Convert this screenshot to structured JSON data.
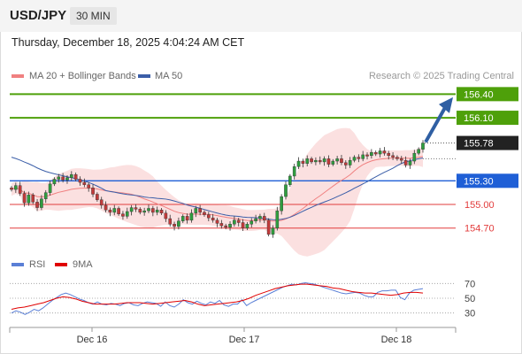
{
  "header": {
    "symbol": "USD/JPY",
    "timeframe": "30 MIN"
  },
  "datetime": "Thursday, December 18, 2025 4:04:24 AM CET",
  "legend": {
    "ma20_label": "MA 20 + Bollinger Bands",
    "ma20_color": "#f08080",
    "ma50_label": "MA 50",
    "ma50_color": "#3b5ea8",
    "copyright": "Research © 2025 Trading Central"
  },
  "rsi_legend": {
    "rsi_label": "RSI",
    "rsi_color": "#5a7fd6",
    "ma_label": "9MA",
    "ma_color": "#e00000"
  },
  "levels": [
    {
      "value": "156.40",
      "type": "resistance",
      "color": "#4ea00a"
    },
    {
      "value": "156.10",
      "type": "resistance",
      "color": "#4ea00a"
    },
    {
      "value": "155.78",
      "type": "last",
      "color": "#222222"
    },
    {
      "value": "155.30",
      "type": "pivot",
      "color": "#1f5fd6"
    },
    {
      "value": "155.00",
      "type": "support",
      "color": "#e23b3b"
    },
    {
      "value": "154.70",
      "type": "support",
      "color": "#e23b3b"
    }
  ],
  "rsi_axis": [
    "70",
    "50",
    "30"
  ],
  "x_axis": [
    "Dec 16",
    "Dec 17",
    "Dec 18"
  ],
  "chart_data": {
    "type": "candlestick",
    "price_range": [
      154.45,
      156.55
    ],
    "rsi_range": [
      20,
      80
    ],
    "close": [
      155.19,
      155.24,
      155.14,
      155.02,
      155.12,
      155.03,
      154.96,
      155.07,
      155.15,
      155.26,
      155.32,
      155.35,
      155.31,
      155.34,
      155.38,
      155.32,
      155.28,
      155.25,
      155.21,
      155.13,
      155.06,
      154.99,
      154.93,
      154.9,
      154.95,
      154.88,
      154.85,
      154.91,
      154.96,
      154.94,
      154.9,
      154.92,
      154.95,
      154.9,
      154.93,
      154.89,
      154.82,
      154.75,
      154.72,
      154.79,
      154.85,
      154.8,
      154.89,
      154.95,
      154.9,
      154.87,
      154.83,
      154.8,
      154.76,
      154.73,
      154.71,
      154.75,
      154.8,
      154.77,
      154.7,
      154.75,
      154.79,
      154.82,
      154.85,
      154.8,
      154.62,
      154.7,
      154.92,
      155.1,
      155.25,
      155.36,
      155.48,
      155.55,
      155.52,
      155.58,
      155.54,
      155.56,
      155.54,
      155.58,
      155.51,
      155.55,
      155.58,
      155.53,
      155.5,
      155.56,
      155.6,
      155.58,
      155.63,
      155.62,
      155.66,
      155.64,
      155.68,
      155.65,
      155.62,
      155.6,
      155.58,
      155.56,
      155.5,
      155.55,
      155.65,
      155.7,
      155.78
    ],
    "rsi": [
      30,
      33,
      31,
      28,
      31,
      35,
      33,
      37,
      42,
      47,
      51,
      55,
      57,
      55,
      52,
      49,
      47,
      44,
      42,
      45,
      42,
      41,
      43,
      42,
      40,
      43,
      44,
      41,
      40,
      43,
      45,
      44,
      43,
      39,
      45,
      40,
      38,
      42,
      48,
      44,
      42,
      46,
      43,
      41,
      45,
      43,
      47,
      41,
      39,
      42,
      42,
      48,
      40,
      44,
      47,
      50,
      53,
      56,
      59,
      62,
      65,
      67,
      69,
      68,
      70,
      71,
      70,
      69,
      67,
      65,
      63,
      61,
      59,
      57,
      56,
      57,
      58,
      57,
      54,
      52,
      52,
      58,
      60,
      60,
      61,
      61,
      51,
      48,
      57,
      61,
      62,
      63
    ],
    "rsi_ma9": [
      35,
      37,
      38,
      40,
      42,
      44,
      47,
      50,
      52,
      51,
      49,
      46,
      44,
      42,
      42,
      42,
      42,
      43,
      44,
      44,
      44,
      43,
      42,
      43,
      44,
      45,
      46,
      47,
      45,
      42,
      40,
      41,
      42,
      43,
      44,
      45,
      47,
      50,
      54,
      57,
      60,
      63,
      65,
      67,
      68,
      69,
      69,
      68,
      67,
      66,
      64,
      63,
      61,
      59,
      58,
      57,
      57,
      56,
      55,
      54,
      55,
      57,
      58,
      58,
      57
    ]
  }
}
